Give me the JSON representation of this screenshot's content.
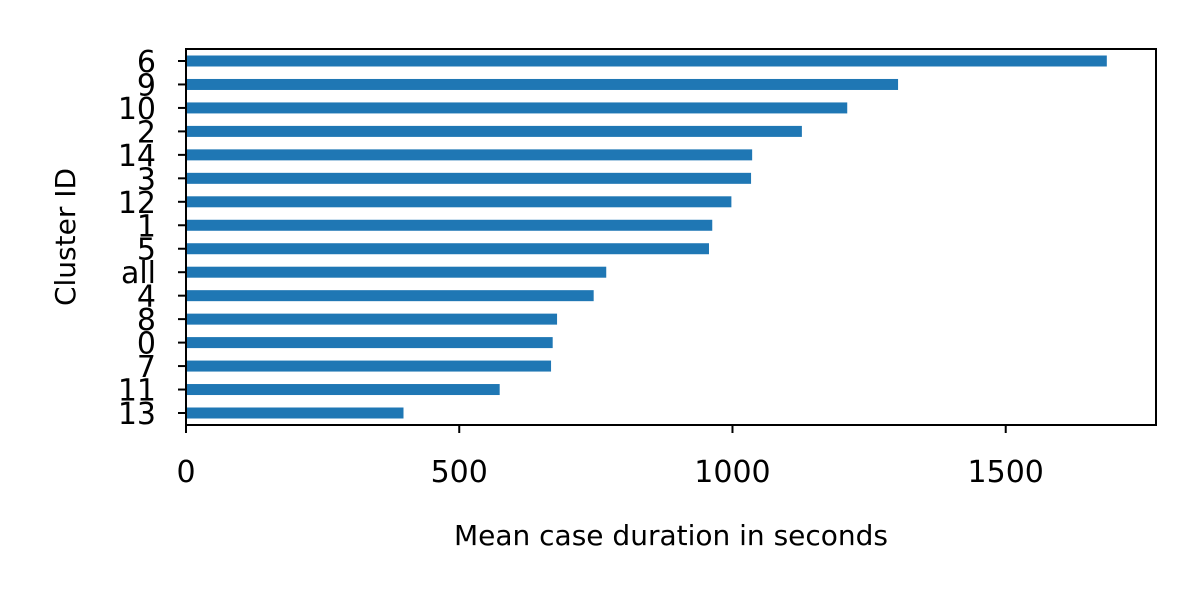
{
  "chart_data": {
    "type": "bar",
    "orientation": "horizontal",
    "xlabel": "Mean case duration in seconds",
    "ylabel": "Cluster ID",
    "categories": [
      "6",
      "9",
      "10",
      "2",
      "14",
      "3",
      "12",
      "1",
      "5",
      "all",
      "4",
      "8",
      "0",
      "7",
      "11",
      "13"
    ],
    "values": [
      1685,
      1303,
      1210,
      1127,
      1036,
      1034,
      998,
      963,
      957,
      769,
      746,
      679,
      671,
      668,
      574,
      398
    ],
    "xlim": [
      0,
      1775
    ],
    "xticks": [
      0,
      500,
      1000,
      1500
    ],
    "grid": false,
    "legend": "none",
    "bar_color": "#1f77b4"
  }
}
